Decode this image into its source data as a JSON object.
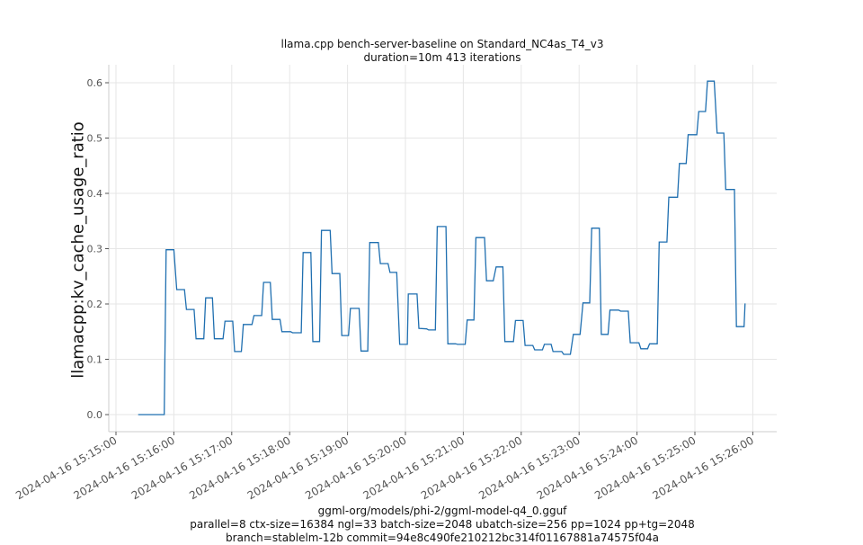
{
  "title": {
    "line1": "llama.cpp bench-server-baseline on Standard_NC4as_T4_v3",
    "line2": "duration=10m 413 iterations"
  },
  "footer": {
    "line1": "ggml-org/models/phi-2/ggml-model-q4_0.gguf",
    "line2": "parallel=8 ctx-size=16384 ngl=33 batch-size=2048 ubatch-size=256 pp=1024 pp+tg=2048",
    "line3": "branch=stablelm-12b commit=94e8c490fe210212bc314f01167881a74575f04a"
  },
  "colors": {
    "line": "#1f6fb0",
    "grid": "#e6e6e6",
    "spine": "#cccccc"
  },
  "chart_data": {
    "type": "line",
    "title": "llama.cpp bench-server-baseline on Standard_NC4as_T4_v3\nduration=10m 413 iterations",
    "xlabel": "",
    "ylabel": "llamacpp:kv_cache_usage_ratio",
    "ylim": [
      -0.03,
      0.63
    ],
    "grid": true,
    "legend": null,
    "x_ticks": [
      "2024-04-16 15:15:00",
      "2024-04-16 15:16:00",
      "2024-04-16 15:17:00",
      "2024-04-16 15:18:00",
      "2024-04-16 15:19:00",
      "2024-04-16 15:20:00",
      "2024-04-16 15:21:00",
      "2024-04-16 15:22:00",
      "2024-04-16 15:23:00",
      "2024-04-16 15:24:00",
      "2024-04-16 15:25:00",
      "2024-04-16 15:26:00"
    ],
    "y_ticks": [
      "0.0",
      "0.1",
      "0.2",
      "0.3",
      "0.4",
      "0.5",
      "0.6"
    ],
    "series": [
      {
        "name": "llamacpp:kv_cache_usage_ratio",
        "x": [
          "15:15:23",
          "15:15:50",
          "15:15:52",
          "15:16:00",
          "15:16:03",
          "15:16:11",
          "15:16:13",
          "15:16:21",
          "15:16:23",
          "15:16:31",
          "15:16:33",
          "15:16:40",
          "15:16:42",
          "15:16:51",
          "15:16:53",
          "15:17:01",
          "15:17:03",
          "15:17:10",
          "15:17:12",
          "15:17:21",
          "15:17:23",
          "15:17:31",
          "15:17:33",
          "15:17:40",
          "15:17:42",
          "15:17:50",
          "15:17:52",
          "15:18:01",
          "15:18:03",
          "15:18:12",
          "15:18:14",
          "15:18:22",
          "15:18:24",
          "15:18:31",
          "15:18:33",
          "15:18:42",
          "15:18:44",
          "15:18:52",
          "15:18:54",
          "15:19:01",
          "15:19:03",
          "15:19:12",
          "15:19:14",
          "15:19:21",
          "15:19:23",
          "15:19:32",
          "15:19:34",
          "15:19:42",
          "15:19:44",
          "15:19:51",
          "15:19:54",
          "15:20:02",
          "15:20:03",
          "15:20:12",
          "15:20:14",
          "15:20:22",
          "15:20:24",
          "15:20:31",
          "15:20:33",
          "15:20:42",
          "15:20:44",
          "15:20:52",
          "15:20:54",
          "15:21:02",
          "15:21:04",
          "15:21:11",
          "15:21:13",
          "15:21:22",
          "15:21:24",
          "15:21:31",
          "15:21:34",
          "15:21:41",
          "15:21:43",
          "15:21:52",
          "15:21:54",
          "15:22:02",
          "15:22:04",
          "15:22:12",
          "15:22:14",
          "15:22:22",
          "15:22:24",
          "15:22:31",
          "15:22:33",
          "15:22:42",
          "15:22:44",
          "15:22:51",
          "15:22:54",
          "15:23:01",
          "15:23:04",
          "15:23:11",
          "15:23:13",
          "15:23:21",
          "15:23:23",
          "15:23:30",
          "15:23:32",
          "15:23:41",
          "15:23:43",
          "15:23:51",
          "15:23:53",
          "15:24:02",
          "15:24:04",
          "15:24:11",
          "15:24:13",
          "15:24:21",
          "15:24:23",
          "15:24:31",
          "15:24:33",
          "15:24:42",
          "15:24:44",
          "15:24:51",
          "15:24:53",
          "15:25:02",
          "15:25:04",
          "15:25:11",
          "15:25:13",
          "15:25:20",
          "15:25:23",
          "15:25:30",
          "15:25:32",
          "15:25:41",
          "15:25:43",
          "15:25:51",
          "15:25:52"
        ],
        "values": [
          0.0,
          0.0,
          0.298,
          0.298,
          0.226,
          0.226,
          0.19,
          0.19,
          0.137,
          0.137,
          0.211,
          0.211,
          0.137,
          0.137,
          0.169,
          0.169,
          0.114,
          0.114,
          0.163,
          0.163,
          0.179,
          0.179,
          0.239,
          0.239,
          0.172,
          0.172,
          0.15,
          0.15,
          0.148,
          0.148,
          0.293,
          0.293,
          0.132,
          0.132,
          0.333,
          0.333,
          0.255,
          0.255,
          0.143,
          0.143,
          0.192,
          0.192,
          0.115,
          0.115,
          0.311,
          0.311,
          0.273,
          0.273,
          0.257,
          0.257,
          0.127,
          0.127,
          0.218,
          0.218,
          0.156,
          0.155,
          0.153,
          0.153,
          0.34,
          0.34,
          0.128,
          0.128,
          0.127,
          0.127,
          0.171,
          0.171,
          0.32,
          0.32,
          0.242,
          0.242,
          0.267,
          0.267,
          0.132,
          0.132,
          0.17,
          0.17,
          0.125,
          0.125,
          0.117,
          0.117,
          0.127,
          0.127,
          0.114,
          0.114,
          0.109,
          0.109,
          0.145,
          0.145,
          0.202,
          0.202,
          0.337,
          0.337,
          0.145,
          0.145,
          0.189,
          0.189,
          0.187,
          0.187,
          0.13,
          0.13,
          0.119,
          0.119,
          0.128,
          0.128,
          0.312,
          0.312,
          0.393,
          0.393,
          0.454,
          0.454,
          0.506,
          0.506,
          0.548,
          0.548,
          0.603,
          0.603,
          0.509,
          0.509,
          0.407,
          0.407,
          0.159,
          0.159,
          0.201
        ]
      }
    ]
  }
}
